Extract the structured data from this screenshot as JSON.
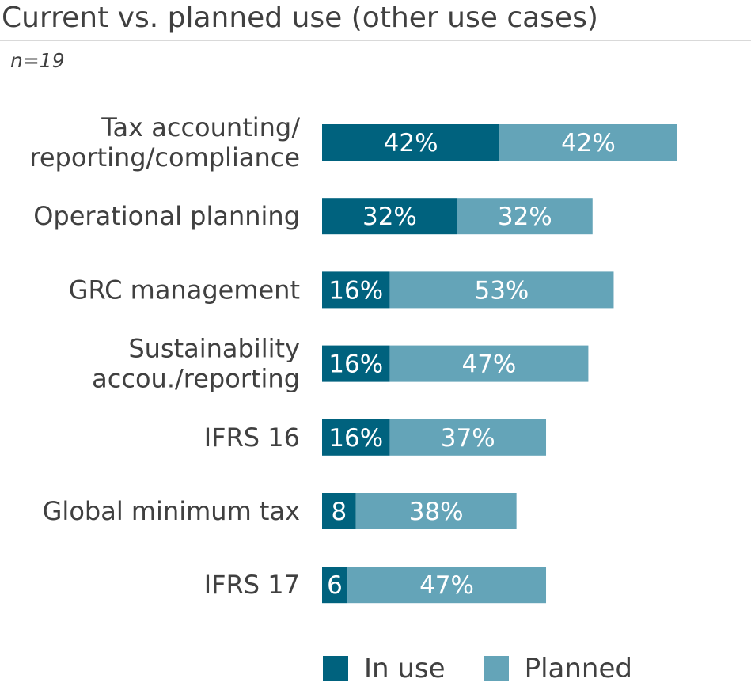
{
  "title": "Current vs. planned use (other use cases)",
  "subtitle": "n=19",
  "colors": {
    "in_use": "#00627e",
    "planned": "#64a4b8",
    "text": "#404040",
    "rule": "#d9d9d9"
  },
  "legend": [
    {
      "label": "In use",
      "color_key": "in_use"
    },
    {
      "label": "Planned",
      "color_key": "planned"
    }
  ],
  "chart_data": {
    "type": "bar",
    "orientation": "horizontal",
    "stacked": true,
    "title": "Current vs. planned use (other use cases)",
    "subtitle": "n=19",
    "xlabel": "",
    "ylabel": "",
    "xlim": [
      0,
      100
    ],
    "grid": false,
    "legend_position": "bottom",
    "categories": [
      [
        "Tax accounting/",
        "reporting/compliance"
      ],
      [
        "Operational planning"
      ],
      [
        "GRC management"
      ],
      [
        "Sustainability",
        "accou./reporting"
      ],
      [
        "IFRS 16"
      ],
      [
        "Global minimum tax"
      ],
      [
        "IFRS 17"
      ]
    ],
    "series": [
      {
        "name": "In use",
        "color_key": "in_use",
        "values": [
          42,
          32,
          16,
          16,
          16,
          8,
          6
        ],
        "labels": [
          "42%",
          "32%",
          "16%",
          "16%",
          "16%",
          "8",
          "6"
        ]
      },
      {
        "name": "Planned",
        "color_key": "planned",
        "values": [
          42,
          32,
          53,
          47,
          37,
          38,
          47
        ],
        "labels": [
          "42%",
          "32%",
          "53%",
          "47%",
          "37%",
          "38%",
          "47%"
        ]
      }
    ]
  }
}
